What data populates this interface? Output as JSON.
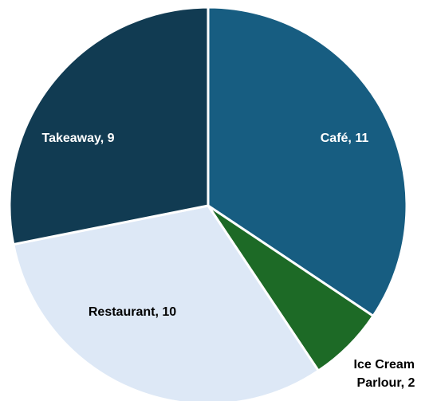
{
  "chart_data": {
    "type": "pie",
    "title": "",
    "slices": [
      {
        "label": "Café",
        "value": 11,
        "display": "Café, 11",
        "color": "#175d81"
      },
      {
        "label": "Ice Cream Parlour",
        "value": 2,
        "display_lines": [
          "Ice Cream",
          "Parlour, 2"
        ],
        "color": "#1d6a26"
      },
      {
        "label": "Restaurant",
        "value": 10,
        "display": "Restaurant, 10",
        "color": "#dde8f6"
      },
      {
        "label": "Takeaway",
        "value": 9,
        "display": "Takeaway, 9",
        "color": "#113b52"
      }
    ],
    "start_angle": "12 o'clock",
    "direction": "clockwise",
    "legend": "none",
    "data_labels": "category, value"
  }
}
